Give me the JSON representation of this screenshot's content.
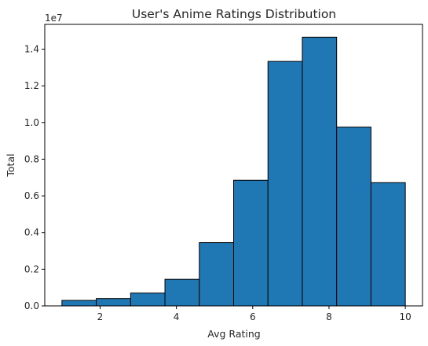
{
  "chart_data": {
    "type": "bar",
    "title": "User's Anime Ratings Distribution",
    "xlabel": "Avg Rating",
    "ylabel": "Total",
    "y_offset_label": "1e7",
    "bin_edges": [
      1.0,
      1.9,
      2.8,
      3.7,
      4.6,
      5.5,
      6.4,
      7.3,
      8.2,
      9.1,
      10.0
    ],
    "values": [
      0.03,
      0.04,
      0.07,
      0.145,
      0.345,
      0.685,
      1.333,
      1.465,
      0.975,
      0.672
    ],
    "xlim": [
      0.55,
      10.45
    ],
    "ylim": [
      0,
      1.535
    ],
    "xticks": [
      2,
      4,
      6,
      8,
      10
    ],
    "xtick_labels": [
      "2",
      "4",
      "6",
      "8",
      "10"
    ],
    "yticks": [
      0,
      0.2,
      0.4,
      0.6,
      0.8,
      1.0,
      1.2,
      1.4
    ],
    "ytick_labels": [
      "0.0",
      "0.2",
      "0.4",
      "0.6",
      "0.8",
      "1.0",
      "1.2",
      "1.4"
    ],
    "bar_color": "#1f77b4",
    "edge_color": "#000000",
    "grid": false
  }
}
